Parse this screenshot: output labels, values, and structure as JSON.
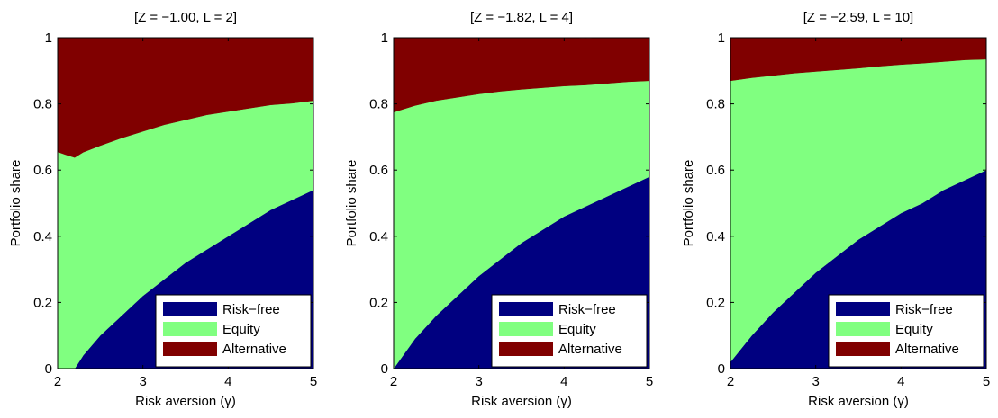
{
  "chart_data": [
    {
      "type": "area",
      "stacked": true,
      "title": "[Z = −1.00, L =  2]",
      "xlabel": "Risk aversion (γ)",
      "ylabel": "Portfolio share",
      "xlim": [
        2,
        5
      ],
      "ylim": [
        0,
        1
      ],
      "xticks": [
        "2",
        "3",
        "4",
        "5"
      ],
      "yticks": [
        "0",
        "0.2",
        "0.4",
        "0.6",
        "0.8",
        "1"
      ],
      "legend": {
        "position": "bottom-right",
        "entries": [
          "Risk−free",
          "Equity",
          "Alternative"
        ]
      },
      "colors": {
        "Risk−free": "#000080",
        "Equity": "#80ff80",
        "Alternative": "#800000"
      },
      "x": [
        2.0,
        2.1,
        2.2,
        2.3,
        2.5,
        2.75,
        3.0,
        3.25,
        3.5,
        3.75,
        4.0,
        4.25,
        4.5,
        4.75,
        5.0
      ],
      "series": [
        {
          "name": "Risk−free",
          "values": [
            0.0,
            0.0,
            0.0,
            0.04,
            0.1,
            0.16,
            0.22,
            0.27,
            0.32,
            0.36,
            0.4,
            0.44,
            0.48,
            0.51,
            0.54
          ]
        },
        {
          "name": "Equity",
          "values": [
            0.655,
            0.646,
            0.638,
            0.614,
            0.574,
            0.537,
            0.497,
            0.467,
            0.432,
            0.407,
            0.377,
            0.347,
            0.317,
            0.292,
            0.27
          ]
        },
        {
          "name": "Alternative",
          "values": [
            0.345,
            0.354,
            0.362,
            0.346,
            0.326,
            0.303,
            0.283,
            0.263,
            0.248,
            0.233,
            0.223,
            0.213,
            0.203,
            0.198,
            0.19
          ]
        }
      ]
    },
    {
      "type": "area",
      "stacked": true,
      "title": "[Z = −1.82, L =  4]",
      "xlabel": "Risk aversion (γ)",
      "ylabel": "Portfolio share",
      "xlim": [
        2,
        5
      ],
      "ylim": [
        0,
        1
      ],
      "xticks": [
        "2",
        "3",
        "4",
        "5"
      ],
      "yticks": [
        "0",
        "0.2",
        "0.4",
        "0.6",
        "0.8",
        "1"
      ],
      "legend": {
        "position": "bottom-right",
        "entries": [
          "Risk−free",
          "Equity",
          "Alternative"
        ]
      },
      "colors": {
        "Risk−free": "#000080",
        "Equity": "#80ff80",
        "Alternative": "#800000"
      },
      "x": [
        2.0,
        2.25,
        2.5,
        2.75,
        3.0,
        3.25,
        3.5,
        3.75,
        4.0,
        4.25,
        4.5,
        4.75,
        5.0
      ],
      "series": [
        {
          "name": "Risk−free",
          "values": [
            0.0,
            0.09,
            0.16,
            0.22,
            0.28,
            0.33,
            0.38,
            0.42,
            0.46,
            0.49,
            0.52,
            0.55,
            0.58
          ]
        },
        {
          "name": "Equity",
          "values": [
            0.775,
            0.705,
            0.65,
            0.6,
            0.55,
            0.508,
            0.464,
            0.429,
            0.394,
            0.367,
            0.342,
            0.317,
            0.29
          ]
        },
        {
          "name": "Alternative",
          "values": [
            0.225,
            0.205,
            0.19,
            0.18,
            0.17,
            0.162,
            0.156,
            0.151,
            0.146,
            0.141,
            0.138,
            0.133,
            0.13
          ]
        }
      ]
    },
    {
      "type": "area",
      "stacked": true,
      "title": "[Z = −2.59, L = 10]",
      "xlabel": "Risk aversion (γ)",
      "ylabel": "Portfolio share",
      "xlim": [
        2,
        5
      ],
      "ylim": [
        0,
        1
      ],
      "xticks": [
        "2",
        "3",
        "4",
        "5"
      ],
      "yticks": [
        "0",
        "0.2",
        "0.4",
        "0.6",
        "0.8",
        "1"
      ],
      "legend": {
        "position": "bottom-right",
        "entries": [
          "Risk−free",
          "Equity",
          "Alternative"
        ]
      },
      "colors": {
        "Risk−free": "#000080",
        "Equity": "#80ff80",
        "Alternative": "#800000"
      },
      "x": [
        2.0,
        2.25,
        2.5,
        2.75,
        3.0,
        3.25,
        3.5,
        3.75,
        4.0,
        4.25,
        4.5,
        4.75,
        5.0
      ],
      "series": [
        {
          "name": "Risk−free",
          "values": [
            0.02,
            0.1,
            0.17,
            0.23,
            0.29,
            0.34,
            0.39,
            0.43,
            0.47,
            0.5,
            0.54,
            0.57,
            0.6
          ]
        },
        {
          "name": "Equity",
          "values": [
            0.85,
            0.779,
            0.716,
            0.663,
            0.608,
            0.563,
            0.518,
            0.484,
            0.449,
            0.423,
            0.388,
            0.363,
            0.335
          ]
        },
        {
          "name": "Alternative",
          "values": [
            0.13,
            0.121,
            0.114,
            0.107,
            0.102,
            0.097,
            0.092,
            0.086,
            0.081,
            0.077,
            0.072,
            0.067,
            0.065
          ]
        }
      ]
    }
  ]
}
